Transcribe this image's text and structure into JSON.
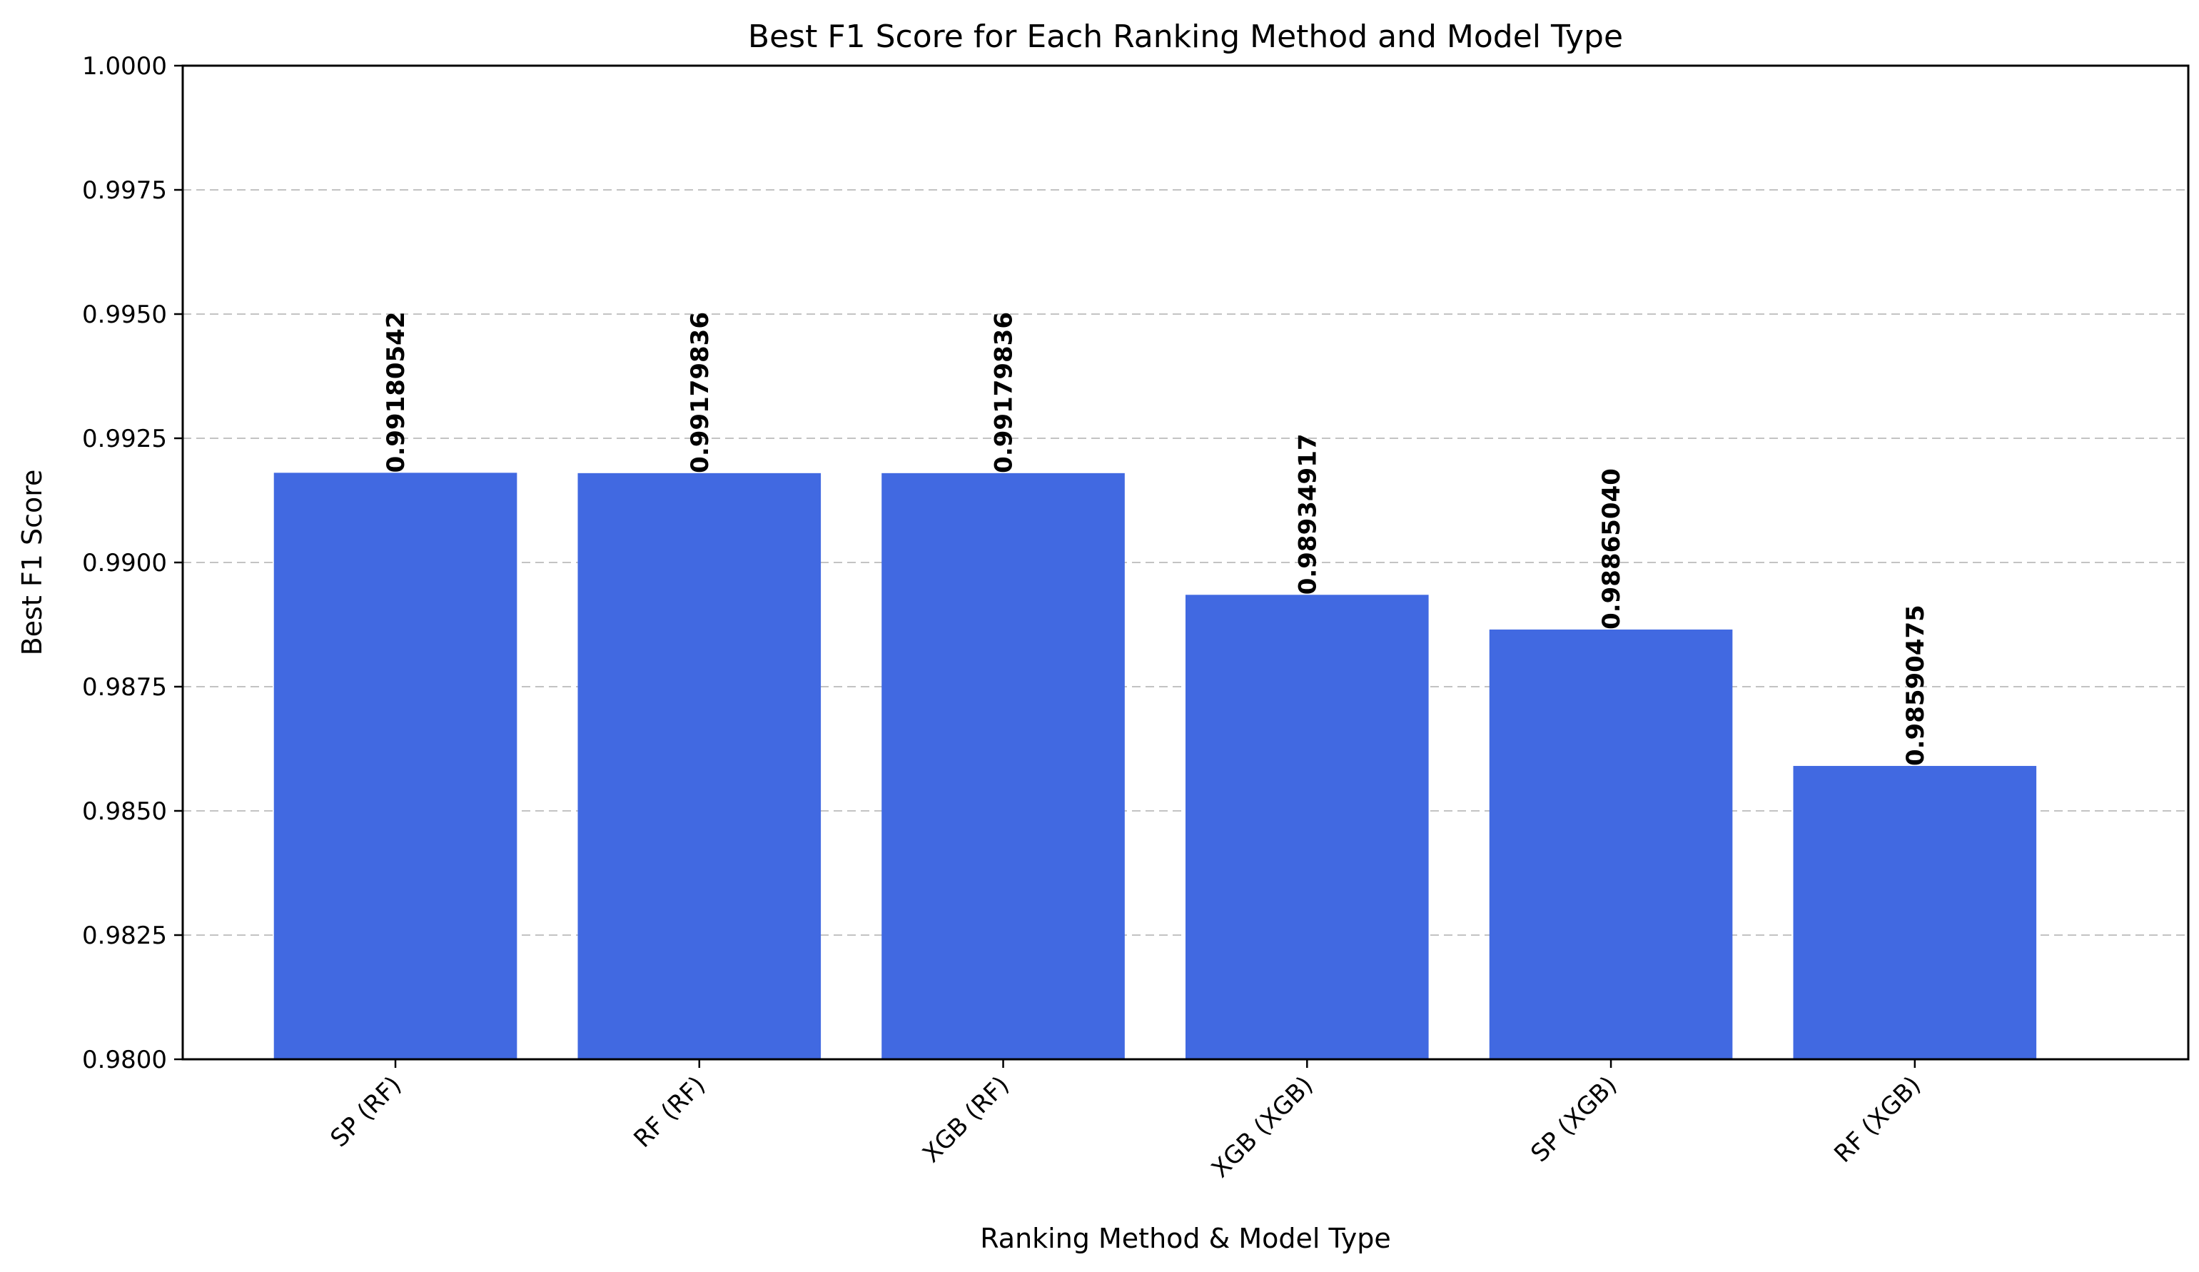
{
  "chart_data": {
    "type": "bar",
    "title": "Best F1 Score for Each Ranking Method and Model Type",
    "xlabel": "Ranking Method & Model Type",
    "ylabel": "Best F1 Score",
    "ylim": [
      0.98,
      1.0
    ],
    "yticks": [
      0.98,
      0.9825,
      0.985,
      0.9875,
      0.99,
      0.9925,
      0.995,
      0.9975,
      1.0
    ],
    "ytick_labels": [
      "0.9800",
      "0.9825",
      "0.9850",
      "0.9875",
      "0.9900",
      "0.9925",
      "0.9950",
      "0.9975",
      "1.0000"
    ],
    "grid": "y, dashed",
    "categories": [
      "SP (RF)",
      "RF (RF)",
      "XGB (RF)",
      "XGB (XGB)",
      "SP (XGB)",
      "RF (XGB)"
    ],
    "values": [
      0.99180542,
      0.99179836,
      0.99179836,
      0.98934917,
      0.9886504,
      0.98590475
    ],
    "value_labels": [
      "0.99180542",
      "0.99179836",
      "0.99179836",
      "0.98934917",
      "0.98865040",
      "0.98590475"
    ],
    "bar_color": "#4169e1"
  }
}
